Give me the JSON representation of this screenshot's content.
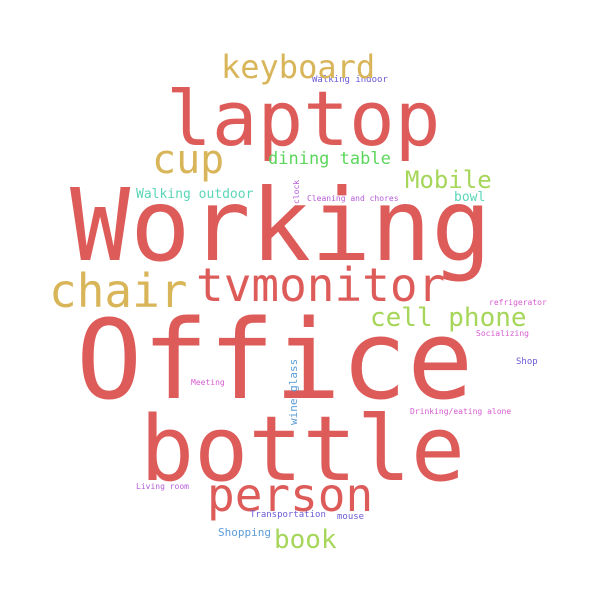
{
  "words": {
    "working": {
      "text": "Working",
      "color": "#dd5c5a"
    },
    "office": {
      "text": "Office",
      "color": "#dd5c5a"
    },
    "laptop": {
      "text": "laptop",
      "color": "#dd5c5a"
    },
    "bottle": {
      "text": "bottle",
      "color": "#dd5c5a"
    },
    "tvmonitor": {
      "text": "tvmonitor",
      "color": "#dd5c5a"
    },
    "person": {
      "text": "person",
      "color": "#dd5c5a"
    },
    "chair": {
      "text": "chair",
      "color": "#d9b55a"
    },
    "cup": {
      "text": "cup",
      "color": "#d9b55a"
    },
    "keyboard": {
      "text": "keyboard",
      "color": "#d9b55a"
    },
    "mobile": {
      "text": "Mobile",
      "color": "#a6d65a"
    },
    "cellphone": {
      "text": "cell phone",
      "color": "#a6d65a"
    },
    "book": {
      "text": "book",
      "color": "#a6d65a"
    },
    "diningtable": {
      "text": "dining table",
      "color": "#5bd65b"
    },
    "walkingoutdoor": {
      "text": "Walking outdoor",
      "color": "#5bd6b8"
    },
    "bowl": {
      "text": "bowl",
      "color": "#5bd6b8"
    },
    "shopping": {
      "text": "Shopping",
      "color": "#5b9cd6"
    },
    "transportation": {
      "text": "Transportation",
      "color": "#6a5bd6"
    },
    "mouse": {
      "text": "mouse",
      "color": "#6a5bd6"
    },
    "walkingindoor": {
      "text": "Walking indoor",
      "color": "#6a5bd6"
    },
    "clock": {
      "text": "clock",
      "color": "#b45bd6"
    },
    "cleaning": {
      "text": "Cleaning and chores",
      "color": "#b45bd6"
    },
    "refrigerator": {
      "text": "refrigerator",
      "color": "#d65bd0"
    },
    "socializing": {
      "text": "Socializing",
      "color": "#d65bd0"
    },
    "shop": {
      "text": "Shop",
      "color": "#6a5bd6"
    },
    "meeting": {
      "text": "Meeting",
      "color": "#d65bd0"
    },
    "drinking": {
      "text": "Drinking/eating alone",
      "color": "#d65bd0"
    },
    "livingroom": {
      "text": "Living room",
      "color": "#b45bd6"
    },
    "wineglass": {
      "text": "wine glass",
      "color": "#5b9cd6"
    }
  }
}
